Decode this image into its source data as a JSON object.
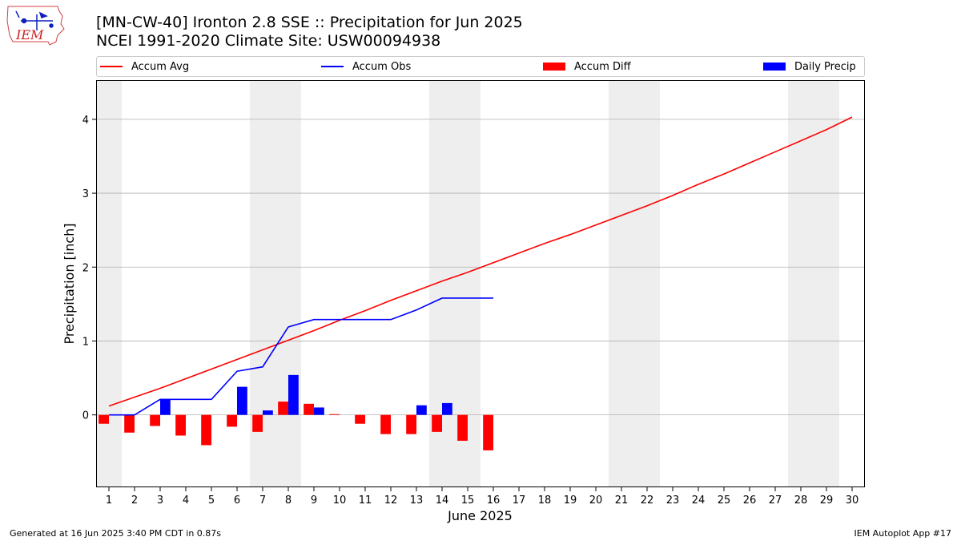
{
  "header": {
    "title_line1": "[MN-CW-40] Ironton 2.8 SSE :: Precipitation for Jun 2025",
    "title_line2": "NCEI 1991-2020 Climate Site: USW00094938",
    "logo_text": "IEM"
  },
  "footer": {
    "generated": "Generated at 16 Jun 2025 3:40 PM CDT in 0.87s",
    "app": "IEM Autoplot App #17"
  },
  "colors": {
    "avg": "#ff0000",
    "obs": "#0000ff",
    "diff": "#ff0000",
    "daily": "#0000ff",
    "weekend_shade": "#eeeeee",
    "grid": "#b0b0b0"
  },
  "legend": {
    "placement": "top, above plot, spanning width",
    "items": [
      {
        "label": "Accum Avg",
        "kind": "line",
        "color": "#ff0000"
      },
      {
        "label": "Accum Obs",
        "kind": "line",
        "color": "#0000ff"
      },
      {
        "label": "Accum Diff",
        "kind": "patch",
        "color": "#ff0000"
      },
      {
        "label": "Daily Precip",
        "kind": "patch",
        "color": "#0000ff"
      }
    ]
  },
  "chart_data": {
    "type": "bar",
    "title": "[MN-CW-40] Ironton 2.8 SSE :: Precipitation for Jun 2025",
    "subtitle": "NCEI 1991-2020 Climate Site: USW00094938",
    "xlabel": "June 2025",
    "ylabel": "Precipitation [inch]",
    "xlim": [
      0.5,
      30.5
    ],
    "ylim": [
      -0.98,
      4.53
    ],
    "grid": "horizontal",
    "x_ticks": [
      1,
      2,
      3,
      4,
      5,
      6,
      7,
      8,
      9,
      10,
      11,
      12,
      13,
      14,
      15,
      16,
      17,
      18,
      19,
      20,
      21,
      22,
      23,
      24,
      25,
      26,
      27,
      28,
      29,
      30
    ],
    "y_ticks": [
      0,
      1,
      2,
      3,
      4
    ],
    "weekend_days": [
      1,
      7,
      8,
      14,
      15,
      21,
      22,
      28,
      29
    ],
    "series": [
      {
        "name": "Accum Avg",
        "kind": "line",
        "x": [
          1,
          2,
          3,
          4,
          5,
          6,
          7,
          8,
          9,
          10,
          11,
          12,
          13,
          14,
          15,
          16,
          17,
          18,
          19,
          20,
          21,
          22,
          23,
          24,
          25,
          26,
          27,
          28,
          29,
          30
        ],
        "values": [
          0.12,
          0.24,
          0.36,
          0.49,
          0.62,
          0.75,
          0.88,
          1.01,
          1.14,
          1.28,
          1.41,
          1.55,
          1.68,
          1.81,
          1.93,
          2.06,
          2.19,
          2.32,
          2.44,
          2.57,
          2.7,
          2.83,
          2.97,
          3.12,
          3.26,
          3.41,
          3.56,
          3.71,
          3.86,
          4.03
        ]
      },
      {
        "name": "Accum Obs",
        "kind": "line",
        "x": [
          1,
          2,
          3,
          4,
          5,
          6,
          7,
          8,
          9,
          10,
          11,
          12,
          13,
          14,
          15,
          16
        ],
        "values": [
          0.0,
          0.0,
          0.21,
          0.21,
          0.21,
          0.59,
          0.65,
          1.19,
          1.29,
          1.29,
          1.29,
          1.29,
          1.42,
          1.58,
          1.58,
          1.58
        ]
      },
      {
        "name": "Accum Diff",
        "kind": "bar",
        "x": [
          1,
          2,
          3,
          4,
          5,
          6,
          7,
          8,
          9,
          10,
          11,
          12,
          13,
          14,
          15,
          16
        ],
        "values": [
          -0.12,
          -0.24,
          -0.15,
          -0.28,
          -0.41,
          -0.16,
          -0.23,
          0.18,
          0.15,
          0.01,
          -0.12,
          -0.26,
          -0.26,
          -0.23,
          -0.35,
          -0.48
        ]
      },
      {
        "name": "Daily Precip",
        "kind": "bar",
        "x": [
          1,
          2,
          3,
          4,
          5,
          6,
          7,
          8,
          9,
          10,
          11,
          12,
          13,
          14,
          15,
          16
        ],
        "values": [
          0,
          0,
          0.21,
          0,
          0,
          0.38,
          0.06,
          0.54,
          0.1,
          0,
          0,
          0,
          0.13,
          0.16,
          0,
          0
        ]
      }
    ]
  }
}
